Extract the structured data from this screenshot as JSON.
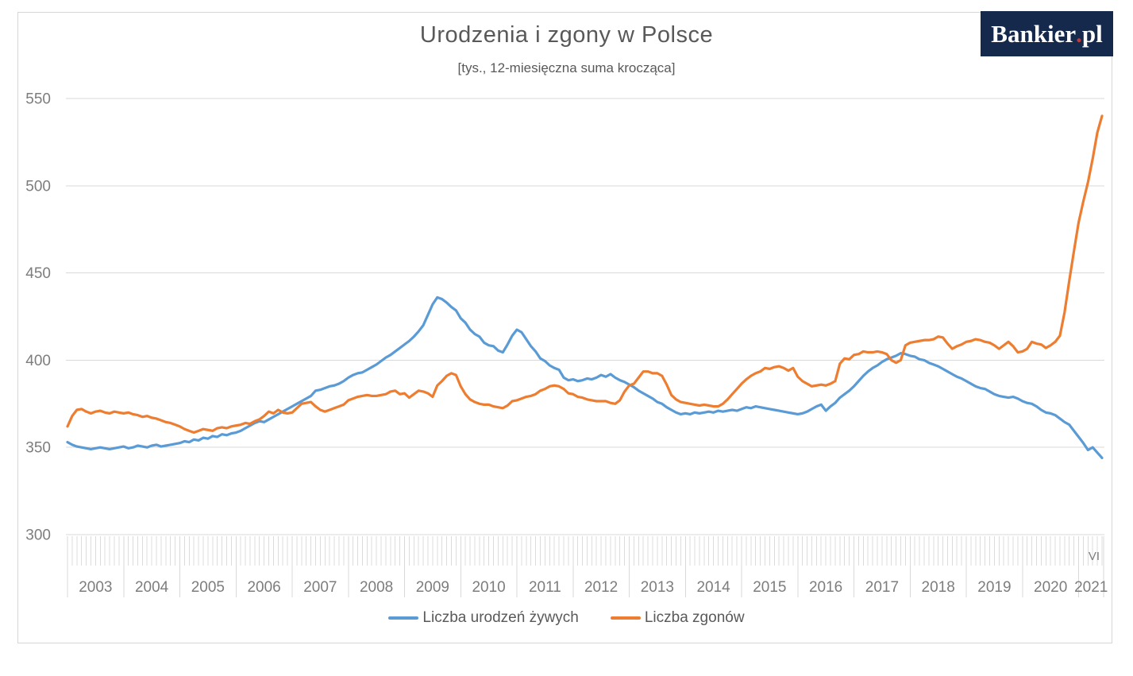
{
  "header": {
    "title": "Urodzenia i zgony w Polsce",
    "subtitle": "[tys., 12-miesięczna suma krocząca]"
  },
  "logo": {
    "main": "Bankier",
    "dot": ".",
    "suffix": "pl"
  },
  "colors": {
    "births_line": "#5B9BD5",
    "deaths_line": "#ED7D31",
    "gridline": "#d9d9d9",
    "month_tick": "#dcdcdc",
    "year_separator": "#d9d9d9",
    "axis_text": "#7d7d7d",
    "title_text": "#595959",
    "logo_background": "#15294d",
    "logo_dot": "#c03a3a",
    "frame_border": "#d6d6d6"
  },
  "chart_data": {
    "type": "line",
    "title": "Urodzenia i zgony w Polsce",
    "subtitle": "[tys., 12-miesięczna suma krocząca]",
    "x_frequency": "monthly",
    "x_start": "2003-01",
    "x_end": "2021-06",
    "x_tick_labels": [
      "2003",
      "2004",
      "2005",
      "2006",
      "2007",
      "2008",
      "2009",
      "2010",
      "2011",
      "2012",
      "2013",
      "2014",
      "2015",
      "2016",
      "2017",
      "2018",
      "2019",
      "2020",
      "2021"
    ],
    "end_month_label": "VI",
    "ylim": [
      300,
      550
    ],
    "y_ticks": [
      300,
      350,
      400,
      450,
      500,
      550
    ],
    "grid": "horizontal",
    "legend_position": "bottom",
    "series": [
      {
        "name": "Liczba urodzeń żywych",
        "color": "#5B9BD5",
        "values": [
          353,
          351.5,
          350.5,
          350,
          349.5,
          349,
          349.5,
          350,
          349.5,
          349,
          349.5,
          350,
          350.5,
          349.5,
          350,
          351,
          350.5,
          350,
          351,
          351.5,
          350.5,
          351,
          351.5,
          352,
          352.5,
          353.5,
          353,
          354.5,
          354,
          355.5,
          355,
          356.5,
          356,
          357.5,
          357,
          358,
          358.5,
          359.5,
          361,
          362.5,
          364,
          365,
          364.5,
          366,
          367.5,
          369,
          370.5,
          372,
          373.5,
          375,
          376.5,
          378,
          379.5,
          382.5,
          383,
          384,
          385,
          385.5,
          386.5,
          388,
          390,
          391.5,
          392.5,
          393,
          394.5,
          396,
          397.5,
          399.5,
          401.5,
          403,
          405,
          407,
          409,
          411,
          413.5,
          416.5,
          420,
          426,
          432,
          436,
          435,
          433,
          430.5,
          428.5,
          424,
          421.5,
          417.5,
          415,
          413.5,
          410,
          408.5,
          408,
          405.5,
          404.5,
          409,
          414,
          417.5,
          416,
          412,
          408,
          405,
          401,
          399.5,
          397,
          395.5,
          394.5,
          390,
          388.5,
          389,
          388,
          388.5,
          389.5,
          389,
          390,
          391.5,
          390.5,
          392,
          390,
          388.5,
          387.5,
          386,
          384.5,
          382.5,
          381,
          379.5,
          378,
          376,
          375,
          373,
          371.5,
          370,
          369,
          369.5,
          369,
          370,
          369.5,
          370,
          370.5,
          370,
          371,
          370.5,
          371,
          371.5,
          371,
          372,
          373,
          372.5,
          373.5,
          373,
          372.5,
          372,
          371.5,
          371,
          370.5,
          370,
          369.5,
          369,
          369.5,
          370.5,
          372,
          373.5,
          374.5,
          371,
          373.5,
          375.5,
          378.5,
          380.5,
          382.5,
          385,
          388,
          391,
          393.5,
          395.5,
          397,
          399,
          400.5,
          401.5,
          402.5,
          404,
          403.5,
          402.5,
          402,
          400.5,
          400,
          398.5,
          397.5,
          396.5,
          395,
          393.5,
          392,
          390.5,
          389.5,
          388,
          386.5,
          385,
          384,
          383.5,
          382,
          380.5,
          379.5,
          379,
          378.5,
          379,
          378,
          376.5,
          375.5,
          375,
          373.5,
          371.5,
          370,
          369.5,
          368.5,
          366.5,
          364.5,
          363,
          359.5,
          356,
          352.5,
          348.5,
          350,
          347,
          344
        ]
      },
      {
        "name": "Liczba zgonów",
        "color": "#ED7D31",
        "values": [
          362,
          368,
          371.5,
          372,
          370.5,
          369.5,
          370.5,
          371,
          370,
          369.5,
          370.5,
          370,
          369.5,
          370,
          369,
          368.5,
          367.5,
          368,
          367,
          366.5,
          365.5,
          364.5,
          364,
          363,
          362,
          360.5,
          359.5,
          358.5,
          359.5,
          360.5,
          360,
          359.5,
          361,
          361.5,
          361,
          362,
          362.5,
          363,
          364,
          363.5,
          365,
          366,
          368,
          370.5,
          369.5,
          371.5,
          370,
          369.5,
          370,
          372.5,
          375,
          375.5,
          376,
          373.5,
          371.5,
          370.5,
          371.5,
          372.5,
          373.5,
          374.5,
          377,
          378,
          379,
          379.5,
          380,
          379.5,
          379.5,
          380,
          380.5,
          382,
          382.5,
          380.5,
          381,
          378.5,
          380.5,
          382.5,
          382,
          381,
          379,
          385.5,
          388,
          391,
          392.5,
          391.5,
          385,
          380.5,
          377.5,
          376,
          375,
          374.5,
          374.5,
          373.5,
          373,
          372.5,
          374,
          376.5,
          377,
          378,
          379,
          379.5,
          380.5,
          382.5,
          383.5,
          385,
          385.5,
          385,
          383.5,
          381,
          380.5,
          379,
          378.5,
          377.5,
          377,
          376.5,
          376.5,
          376.5,
          375.5,
          375,
          377,
          382,
          385.5,
          386.5,
          390,
          393.5,
          393.5,
          392.5,
          392.5,
          391,
          386,
          380,
          377.5,
          376,
          375.5,
          375,
          374.5,
          374,
          374.5,
          374,
          373.5,
          373.5,
          375,
          377.5,
          380.5,
          383.5,
          386.5,
          389,
          391,
          392.5,
          393.5,
          395.5,
          395,
          396,
          396.5,
          395.5,
          394,
          395.5,
          390.5,
          388,
          386.5,
          385,
          385.5,
          386,
          385.5,
          386.5,
          388,
          398,
          401,
          400.5,
          403,
          403.5,
          405,
          404.5,
          404.5,
          405,
          404.5,
          403.5,
          400,
          398.5,
          400,
          408.5,
          410,
          410.5,
          411,
          411.5,
          411.5,
          412,
          413.5,
          413,
          409.5,
          406.5,
          408,
          409,
          410.5,
          411,
          412,
          411.5,
          410.5,
          410,
          408.5,
          406.5,
          408.5,
          410.5,
          408,
          404.5,
          405,
          406.5,
          410.5,
          409.5,
          409,
          407,
          408.5,
          410.5,
          414,
          427.5,
          445.5,
          462.5,
          479,
          491,
          502,
          515.5,
          530.5,
          540
        ]
      }
    ]
  }
}
